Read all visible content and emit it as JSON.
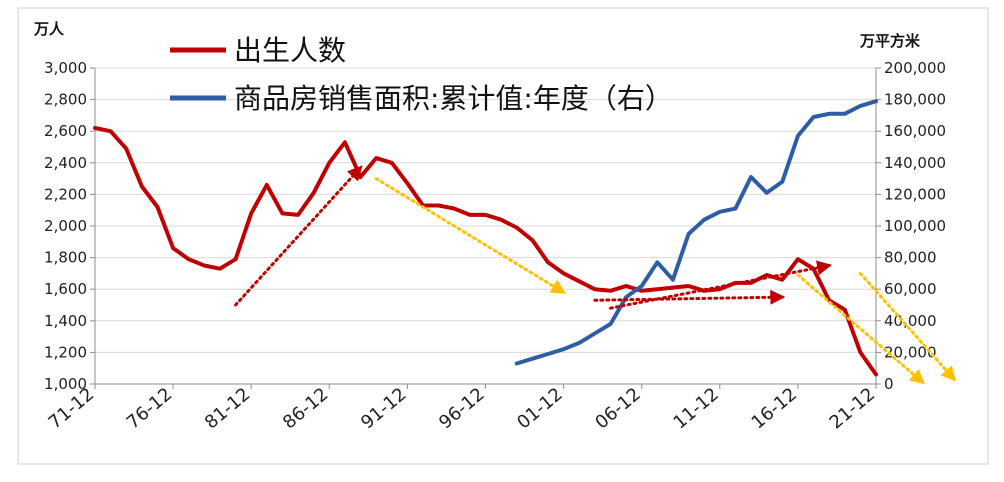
{
  "chart_data": {
    "type": "line",
    "left_unit": "万人",
    "right_unit": "万平方米",
    "legend_placement": "top-left",
    "grid": true,
    "x_tick_labels": [
      "71-12",
      "76-12",
      "81-12",
      "86-12",
      "91-12",
      "96-12",
      "01-12",
      "06-12",
      "11-12",
      "16-12",
      "21-12"
    ],
    "y_left": {
      "min": 1000,
      "max": 3000,
      "ticks": [
        "1,000",
        "1,200",
        "1,400",
        "1,600",
        "1,800",
        "2,000",
        "2,200",
        "2,400",
        "2,600",
        "2,800",
        "3,000"
      ]
    },
    "y_right": {
      "min": 0,
      "max": 200000,
      "ticks": [
        "0",
        "20,000",
        "40,000",
        "60,000",
        "80,000",
        "100,000",
        "120,000",
        "140,000",
        "160,000",
        "180,000",
        "200,000"
      ]
    },
    "series": [
      {
        "name": "出生人数",
        "axis": "left",
        "color": "#c00000",
        "x": [
          1971,
          1972,
          1973,
          1974,
          1975,
          1976,
          1977,
          1978,
          1979,
          1980,
          1981,
          1982,
          1983,
          1984,
          1985,
          1986,
          1987,
          1988,
          1989,
          1990,
          1991,
          1992,
          1993,
          1994,
          1995,
          1996,
          1997,
          1998,
          1999,
          2000,
          2001,
          2002,
          2003,
          2004,
          2005,
          2006,
          2007,
          2008,
          2009,
          2010,
          2011,
          2012,
          2013,
          2014,
          2015,
          2016,
          2017,
          2018,
          2019,
          2020,
          2021
        ],
        "values": [
          2620,
          2600,
          2490,
          2250,
          2120,
          1860,
          1790,
          1750,
          1730,
          1790,
          2080,
          2260,
          2080,
          2070,
          2210,
          2400,
          2530,
          2310,
          2430,
          2400,
          2270,
          2130,
          2130,
          2110,
          2070,
          2070,
          2040,
          1990,
          1910,
          1770,
          1700,
          1650,
          1600,
          1590,
          1620,
          1590,
          1600,
          1610,
          1620,
          1590,
          1600,
          1640,
          1640,
          1690,
          1660,
          1790,
          1730,
          1530,
          1470,
          1200,
          1060
        ]
      },
      {
        "name": "商品房销售面积:累计值:年度（右）",
        "axis": "right",
        "color": "#2e5da8",
        "x": [
          1998,
          1999,
          2000,
          2001,
          2002,
          2003,
          2004,
          2005,
          2006,
          2007,
          2008,
          2009,
          2010,
          2011,
          2012,
          2013,
          2014,
          2015,
          2016,
          2017,
          2018,
          2019,
          2020,
          2021
        ],
        "values": [
          13000,
          16000,
          19000,
          22000,
          26000,
          32000,
          38000,
          55000,
          62000,
          77000,
          66000,
          95000,
          104000,
          109000,
          111000,
          131000,
          121000,
          128000,
          157000,
          169000,
          171000,
          171000,
          176000,
          179000
        ]
      }
    ],
    "trend_arrows": [
      {
        "color": "#c00000",
        "from": [
          1980,
          1500
        ],
        "to": [
          1988,
          2370
        ]
      },
      {
        "color": "#c00000",
        "from": [
          2004,
          1480
        ],
        "to": [
          2018,
          1750
        ]
      },
      {
        "color": "#c00000",
        "from": [
          2003,
          1530
        ],
        "to": [
          2015,
          1550
        ]
      },
      {
        "color": "#ffc000",
        "from": [
          1989,
          2300
        ],
        "to": [
          2001,
          1580
        ]
      },
      {
        "color": "#ffc000",
        "from": [
          2020,
          1700
        ],
        "to": [
          2026,
          1030
        ]
      },
      {
        "color": "#ffc000",
        "from": [
          2016,
          1690
        ],
        "to": [
          2024,
          1010
        ]
      }
    ]
  }
}
